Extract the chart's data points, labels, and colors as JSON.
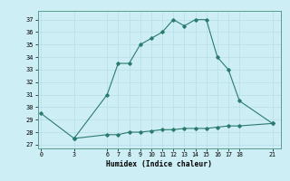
{
  "x_upper": [
    0,
    3,
    6,
    7,
    8,
    9,
    10,
    11,
    12,
    13,
    14,
    15,
    16,
    17,
    18,
    21
  ],
  "y_upper": [
    29.5,
    27.5,
    31.0,
    33.5,
    33.5,
    35.0,
    35.5,
    36.0,
    37.0,
    36.5,
    37.0,
    37.0,
    34.0,
    33.0,
    30.5,
    28.7
  ],
  "x_lower": [
    3,
    6,
    7,
    8,
    9,
    10,
    11,
    12,
    13,
    14,
    15,
    16,
    17,
    18,
    21
  ],
  "y_lower": [
    27.5,
    27.8,
    27.8,
    28.0,
    28.0,
    28.1,
    28.2,
    28.2,
    28.3,
    28.3,
    28.3,
    28.4,
    28.5,
    28.5,
    28.7
  ],
  "line_color": "#2a7b6e",
  "bg_color": "#cdeef5",
  "grid_color": "#b8dde8",
  "xlabel": "Humidex (Indice chaleur)",
  "xticks": [
    0,
    3,
    6,
    7,
    8,
    9,
    10,
    11,
    12,
    13,
    14,
    15,
    16,
    17,
    18,
    21
  ],
  "yticks": [
    27,
    28,
    29,
    30,
    31,
    32,
    33,
    34,
    35,
    36,
    37
  ],
  "ylim": [
    26.7,
    37.7
  ],
  "xlim": [
    -0.3,
    21.8
  ]
}
